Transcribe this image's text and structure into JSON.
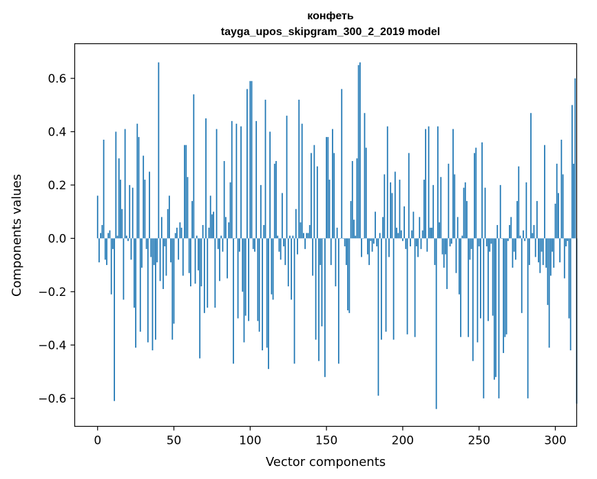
{
  "chart_data": {
    "type": "bar",
    "title": "конфеть",
    "subtitle": "tayga_upos_skipgram_300_2_2019 model",
    "xlabel": "Vector components",
    "ylabel": "Components values",
    "xlim": [
      -15,
      314
    ],
    "ylim": [
      -0.705,
      0.73
    ],
    "xticks": [
      0,
      50,
      100,
      150,
      200,
      250,
      300
    ],
    "yticks": [
      -0.6,
      -0.4,
      -0.2,
      0.0,
      0.2,
      0.4,
      0.6
    ],
    "xtick_labels": [
      "0",
      "50",
      "100",
      "150",
      "200",
      "250",
      "300"
    ],
    "ytick_labels": [
      "−0.6",
      "−0.4",
      "−0.2",
      "0.0",
      "0.2",
      "0.4",
      "0.6"
    ],
    "bar_color": "#1f77b4",
    "grid": false,
    "values": [
      0.16,
      -0.09,
      0.02,
      0.05,
      0.37,
      -0.08,
      -0.1,
      0.02,
      0.03,
      -0.21,
      -0.04,
      -0.61,
      0.4,
      0.01,
      0.3,
      0.22,
      0.11,
      -0.23,
      0.41,
      0.01,
      -0.01,
      0.2,
      -0.08,
      0.19,
      -0.26,
      -0.41,
      0.43,
      0.38,
      -0.35,
      -0.11,
      0.31,
      0.22,
      -0.04,
      -0.39,
      0.25,
      -0.07,
      -0.42,
      -0.1,
      -0.38,
      -0.09,
      0.66,
      -0.16,
      0.08,
      -0.19,
      -0.03,
      -0.14,
      0.11,
      0.16,
      -0.09,
      -0.38,
      -0.32,
      0.02,
      0.04,
      -0.08,
      0.06,
      0.04,
      -0.14,
      0.35,
      0.35,
      0.23,
      -0.13,
      -0.18,
      0.14,
      0.54,
      -0.17,
      0.01,
      -0.12,
      -0.45,
      -0.18,
      0.05,
      -0.28,
      0.45,
      -0.26,
      0.04,
      0.16,
      0.09,
      0.1,
      -0.26,
      0.41,
      -0.04,
      -0.16,
      0.01,
      -0.05,
      0.29,
      0.08,
      -0.15,
      0.06,
      0.21,
      0.44,
      -0.47,
      0.0,
      0.43,
      -0.3,
      -0.05,
      0.42,
      -0.2,
      -0.39,
      -0.29,
      0.56,
      -0.31,
      0.59,
      0.59,
      -0.04,
      -0.05,
      0.44,
      -0.31,
      -0.35,
      0.2,
      -0.42,
      0.05,
      0.52,
      -0.41,
      -0.49,
      0.4,
      -0.21,
      -0.23,
      0.28,
      0.29,
      0.01,
      -0.05,
      -0.08,
      0.17,
      -0.03,
      -0.1,
      0.46,
      -0.18,
      0.01,
      -0.23,
      0.01,
      -0.47,
      0.11,
      -0.06,
      0.52,
      0.06,
      0.43,
      0.02,
      -0.04,
      0.02,
      0.02,
      0.05,
      0.32,
      -0.14,
      0.35,
      -0.38,
      0.27,
      -0.46,
      -0.1,
      -0.33,
      0.0,
      -0.52,
      0.38,
      0.38,
      0.22,
      -0.1,
      0.41,
      0.32,
      -0.18,
      0.04,
      -0.47,
      0.0,
      0.56,
      0.0,
      -0.03,
      -0.1,
      -0.27,
      -0.28,
      0.14,
      0.29,
      0.07,
      0.01,
      0.3,
      0.65,
      0.66,
      -0.07,
      0.0,
      0.47,
      0.34,
      -0.06,
      -0.1,
      -0.01,
      -0.05,
      -0.02,
      0.1,
      -0.03,
      -0.59,
      0.02,
      -0.38,
      0.08,
      0.24,
      -0.35,
      0.42,
      -0.07,
      0.21,
      0.17,
      -0.38,
      0.25,
      0.04,
      0.02,
      0.22,
      0.03,
      -0.01,
      0.12,
      -0.04,
      -0.36,
      0.32,
      -0.03,
      0.03,
      0.1,
      -0.37,
      -0.03,
      -0.07,
      0.08,
      -0.04,
      0.03,
      0.22,
      0.41,
      -0.05,
      0.42,
      0.04,
      0.04,
      0.2,
      -0.1,
      -0.64,
      0.42,
      0.06,
      0.23,
      -0.06,
      -0.11,
      -0.06,
      -0.19,
      0.28,
      -0.03,
      -0.02,
      0.41,
      0.24,
      -0.13,
      0.08,
      -0.21,
      -0.37,
      0.01,
      0.19,
      0.21,
      0.14,
      -0.37,
      -0.08,
      -0.04,
      -0.46,
      0.32,
      0.34,
      -0.39,
      -0.03,
      -0.3,
      0.36,
      -0.6,
      0.19,
      -0.03,
      -0.31,
      -0.05,
      -0.02,
      -0.29,
      -0.53,
      -0.52,
      0.05,
      -0.6,
      0.2,
      0.0,
      -0.43,
      -0.37,
      -0.36,
      -0.01,
      0.05,
      0.08,
      -0.11,
      -0.05,
      -0.08,
      0.14,
      0.27,
      0.01,
      -0.28,
      0.03,
      -0.01,
      0.21,
      -0.6,
      -0.1,
      0.47,
      0.02,
      0.05,
      -0.07,
      0.14,
      -0.09,
      -0.13,
      -0.05,
      -0.1,
      0.35,
      -0.11,
      -0.25,
      -0.41,
      -0.14,
      -0.05,
      -0.11,
      0.13,
      0.28,
      0.17,
      -0.09,
      0.37,
      0.24,
      -0.15,
      -0.03,
      -0.01,
      -0.3,
      -0.42,
      0.5,
      0.28,
      0.6,
      -0.62
    ]
  }
}
